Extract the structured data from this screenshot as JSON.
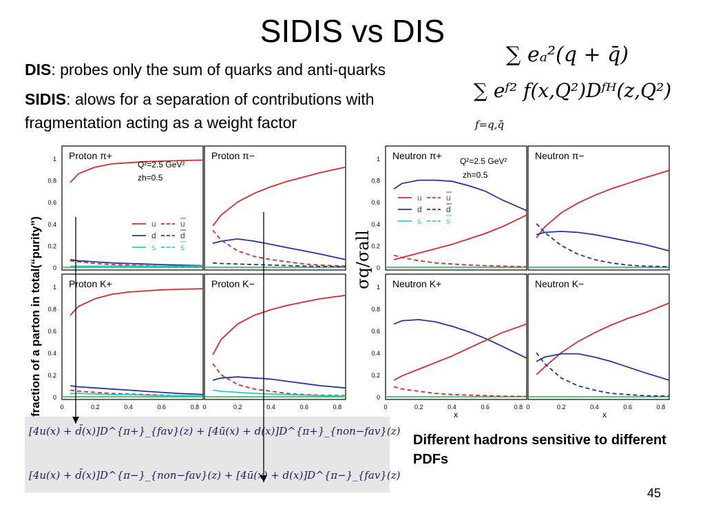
{
  "title": "SIDIS vs DIS",
  "dis": {
    "term": "DIS",
    "text": ": probes only the sum of quarks and anti-quarks"
  },
  "sidis": {
    "term": "SIDIS",
    "text": ": alows for a separation of contributions with",
    "text2": "fragmentation acting as a weight factor"
  },
  "formula_dis": "∑ eₐ²(q + q̄)",
  "formula_sidis": "∑ eᶠ² f(x,Q²)Dᶠᴴ(z,Q²)",
  "formula_sidis_sub": "f=q,q̄",
  "y_axis_label_left": "fraction of a parton in total(“purity”)",
  "y_axis_label_right": "σq/σall",
  "legend": {
    "u": "u",
    "ubar": "u",
    "d": "d",
    "dbar": "d",
    "s": "s",
    "sbar": "s",
    "q2": "Q²=2.5 GeV²",
    "zh": "zh=0.5"
  },
  "axis_x_label": "x",
  "yticks": [
    "0",
    "0.2",
    "0.4",
    "0.6",
    "0.8",
    "1"
  ],
  "xticks": [
    "0",
    "0.2",
    "0.4",
    "0.6",
    "0.8"
  ],
  "formulas": {
    "line1": "[4u(x) + d̄(x)]D^{π+}_{fav}(z) + [4ū(x) + d(x)]D^{π+}_{non−fav}(z)",
    "line2": "[4u(x) + d̄(x)]D^{π−}_{non−fav}(z) + [4ū(x) + d(x)]D^{π−}_{fav}(z)"
  },
  "conclusion": "Different hadrons sensitive to different PDFs",
  "page_number": "45",
  "colors": {
    "u": "#d62a2a",
    "d": "#2233aa",
    "s": "#22d0c0",
    "arrow": "#000000"
  },
  "chart_data": [
    {
      "type": "line",
      "title": "Proton π+",
      "x": [
        0.05,
        0.1,
        0.2,
        0.3,
        0.4,
        0.5,
        0.6,
        0.7,
        0.85
      ],
      "series": [
        {
          "name": "u",
          "values": [
            0.78,
            0.86,
            0.92,
            0.95,
            0.96,
            0.97,
            0.975,
            0.98,
            0.985
          ]
        },
        {
          "name": "d",
          "values": [
            0.07,
            0.06,
            0.05,
            0.04,
            0.035,
            0.03,
            0.025,
            0.02,
            0.015
          ]
        },
        {
          "name": "ubar",
          "values": [
            0.06,
            0.05,
            0.035,
            0.025,
            0.02,
            0.015,
            0.01,
            0.005,
            0.003
          ]
        },
        {
          "name": "s",
          "values": [
            0.01,
            0.01,
            0.01,
            0.01,
            0.01,
            0.01,
            0.01,
            0.01,
            0.01
          ]
        }
      ],
      "ylim": [
        0,
        1
      ]
    },
    {
      "type": "line",
      "title": "Proton π−",
      "x": [
        0.05,
        0.1,
        0.2,
        0.3,
        0.4,
        0.5,
        0.6,
        0.7,
        0.85
      ],
      "series": [
        {
          "name": "u",
          "values": [
            0.38,
            0.48,
            0.6,
            0.68,
            0.74,
            0.79,
            0.83,
            0.87,
            0.92
          ]
        },
        {
          "name": "d",
          "values": [
            0.22,
            0.24,
            0.26,
            0.24,
            0.21,
            0.18,
            0.15,
            0.12,
            0.07
          ]
        },
        {
          "name": "ubar",
          "values": [
            0.34,
            0.25,
            0.15,
            0.1,
            0.07,
            0.05,
            0.03,
            0.02,
            0.01
          ]
        },
        {
          "name": "dbar",
          "values": [
            0.04,
            0.035,
            0.03,
            0.025,
            0.02,
            0.015,
            0.01,
            0.008,
            0.005
          ]
        }
      ],
      "ylim": [
        0,
        1
      ]
    },
    {
      "type": "line",
      "title": "Neutron π+",
      "x": [
        0.05,
        0.1,
        0.2,
        0.3,
        0.4,
        0.5,
        0.6,
        0.7,
        0.85
      ],
      "series": [
        {
          "name": "d",
          "values": [
            0.72,
            0.77,
            0.8,
            0.8,
            0.79,
            0.75,
            0.7,
            0.62,
            0.52
          ]
        },
        {
          "name": "u",
          "values": [
            0.07,
            0.09,
            0.13,
            0.17,
            0.21,
            0.26,
            0.31,
            0.37,
            0.48
          ]
        },
        {
          "name": "ubar",
          "values": [
            0.11,
            0.09,
            0.06,
            0.04,
            0.03,
            0.02,
            0.015,
            0.01,
            0.005
          ]
        }
      ],
      "ylim": [
        0,
        1
      ]
    },
    {
      "type": "line",
      "title": "Neutron π−",
      "x": [
        0.05,
        0.1,
        0.2,
        0.3,
        0.4,
        0.5,
        0.6,
        0.7,
        0.85
      ],
      "series": [
        {
          "name": "u",
          "values": [
            0.27,
            0.37,
            0.5,
            0.59,
            0.66,
            0.72,
            0.77,
            0.82,
            0.89
          ]
        },
        {
          "name": "d",
          "values": [
            0.3,
            0.32,
            0.33,
            0.32,
            0.3,
            0.27,
            0.24,
            0.21,
            0.15
          ]
        },
        {
          "name": "dbar",
          "values": [
            0.4,
            0.32,
            0.2,
            0.12,
            0.07,
            0.04,
            0.02,
            0.01,
            0.005
          ]
        }
      ],
      "ylim": [
        0,
        1
      ]
    },
    {
      "type": "line",
      "title": "Proton K+",
      "x": [
        0.05,
        0.1,
        0.2,
        0.3,
        0.4,
        0.5,
        0.6,
        0.7,
        0.85
      ],
      "series": [
        {
          "name": "u",
          "values": [
            0.74,
            0.82,
            0.89,
            0.93,
            0.95,
            0.96,
            0.97,
            0.975,
            0.98
          ]
        },
        {
          "name": "d",
          "values": [
            0.1,
            0.09,
            0.08,
            0.07,
            0.06,
            0.05,
            0.04,
            0.03,
            0.02
          ]
        },
        {
          "name": "ubar",
          "values": [
            0.06,
            0.05,
            0.04,
            0.03,
            0.025,
            0.02,
            0.015,
            0.01,
            0.005
          ]
        },
        {
          "name": "s",
          "values": [
            0.03,
            0.03,
            0.025,
            0.02,
            0.02,
            0.015,
            0.01,
            0.01,
            0.005
          ]
        }
      ],
      "ylim": [
        0,
        1
      ]
    },
    {
      "type": "line",
      "title": "Proton K−",
      "x": [
        0.05,
        0.1,
        0.2,
        0.3,
        0.4,
        0.5,
        0.6,
        0.7,
        0.85
      ],
      "series": [
        {
          "name": "u",
          "values": [
            0.38,
            0.52,
            0.66,
            0.74,
            0.79,
            0.83,
            0.86,
            0.89,
            0.92
          ]
        },
        {
          "name": "d",
          "values": [
            0.15,
            0.17,
            0.18,
            0.17,
            0.16,
            0.14,
            0.12,
            0.1,
            0.08
          ]
        },
        {
          "name": "ubar",
          "values": [
            0.3,
            0.2,
            0.11,
            0.07,
            0.05,
            0.03,
            0.02,
            0.015,
            0.01
          ]
        },
        {
          "name": "s",
          "values": [
            0.06,
            0.05,
            0.04,
            0.03,
            0.025,
            0.02,
            0.015,
            0.01,
            0.005
          ]
        }
      ],
      "ylim": [
        0,
        1
      ]
    },
    {
      "type": "line",
      "title": "Neutron K+",
      "x": [
        0.05,
        0.1,
        0.2,
        0.3,
        0.4,
        0.5,
        0.6,
        0.7,
        0.85
      ],
      "series": [
        {
          "name": "d",
          "values": [
            0.66,
            0.69,
            0.7,
            0.68,
            0.64,
            0.59,
            0.53,
            0.46,
            0.35
          ]
        },
        {
          "name": "u",
          "values": [
            0.15,
            0.19,
            0.25,
            0.31,
            0.37,
            0.44,
            0.51,
            0.58,
            0.66
          ]
        },
        {
          "name": "ubar",
          "values": [
            0.09,
            0.07,
            0.05,
            0.03,
            0.02,
            0.015,
            0.01,
            0.005,
            0.003
          ]
        }
      ],
      "ylim": [
        0,
        1
      ]
    },
    {
      "type": "line",
      "title": "Neutron K−",
      "x": [
        0.05,
        0.1,
        0.2,
        0.3,
        0.4,
        0.5,
        0.6,
        0.7,
        0.85
      ],
      "series": [
        {
          "name": "u",
          "values": [
            0.2,
            0.27,
            0.4,
            0.5,
            0.58,
            0.65,
            0.71,
            0.76,
            0.85
          ]
        },
        {
          "name": "d",
          "values": [
            0.32,
            0.36,
            0.39,
            0.39,
            0.36,
            0.32,
            0.27,
            0.22,
            0.15
          ]
        },
        {
          "name": "dbar",
          "values": [
            0.4,
            0.3,
            0.17,
            0.1,
            0.06,
            0.03,
            0.02,
            0.01,
            0.005
          ]
        }
      ],
      "ylim": [
        0,
        1
      ]
    }
  ]
}
